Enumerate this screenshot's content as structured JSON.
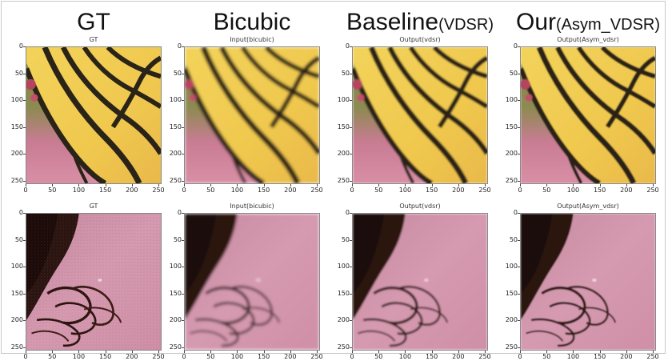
{
  "columns": [
    {
      "main": "GT",
      "suffix": ""
    },
    {
      "main": "Bicubic",
      "suffix": ""
    },
    {
      "main": "Baseline",
      "suffix": "(VDSR)"
    },
    {
      "main": "Our",
      "suffix": "(Asym_VDSR)"
    }
  ],
  "rows": [
    {
      "subject": "butterfly-wing",
      "panel_titles": [
        "GT",
        "Input(bicubic)",
        "Output(vdsr)",
        "Output(Asym_vdsr)"
      ],
      "y_ticks": [
        "0",
        "50",
        "100",
        "150",
        "200",
        "250"
      ],
      "x_ticks": [
        "0",
        "50",
        "100",
        "150",
        "200",
        "250"
      ]
    },
    {
      "subject": "hair-on-skin",
      "panel_titles": [
        "GT",
        "Input(bicubic)",
        "Output(vdsr)",
        "Output(Asym_vdsr)"
      ],
      "y_ticks": [
        "0",
        "50",
        "100",
        "150",
        "200",
        "250"
      ],
      "x_ticks": [
        "0",
        "50",
        "100",
        "150",
        "200",
        "250"
      ]
    }
  ],
  "axis_max": 256
}
